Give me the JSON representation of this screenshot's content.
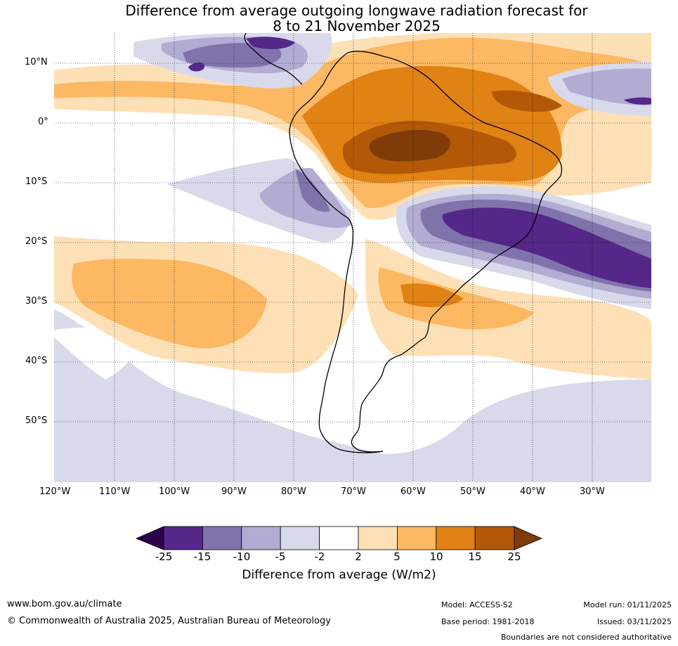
{
  "title": {
    "line1": "Difference from average outgoing longwave radiation forecast for",
    "line2": "8 to 21 November 2025"
  },
  "map": {
    "lat_labels": [
      "10°N",
      "0°",
      "10°S",
      "20°S",
      "30°S",
      "40°S",
      "50°S"
    ],
    "lon_labels": [
      "120°W",
      "110°W",
      "100°W",
      "90°W",
      "80°W",
      "70°W",
      "60°W",
      "50°W",
      "40°W",
      "30°W"
    ]
  },
  "colorbar": {
    "title": "Difference from average (W/m2)",
    "labels": [
      "-25",
      "-15",
      "-10",
      "-5",
      "-2",
      "2",
      "5",
      "10",
      "15",
      "25"
    ],
    "colors": {
      "below": "#2d004b",
      "bins": [
        "#542788",
        "#8073ac",
        "#b2abd2",
        "#d8daeb",
        "#ffffff",
        "#fee0b6",
        "#fdb863",
        "#e08214",
        "#b35806"
      ],
      "above": "#7f3b08"
    }
  },
  "footer": {
    "website": "www.bom.gov.au/climate",
    "copyright": "© Commonwealth of Australia 2025, Australian Bureau of Meteorology",
    "model": "Model: ACCESS-S2",
    "base_period": "Base period: 1981-2018",
    "model_run": "Model run: 01/11/2025",
    "issued": "Issued: 03/11/2025",
    "disclaimer": "Boundaries are not considered authoritative"
  }
}
